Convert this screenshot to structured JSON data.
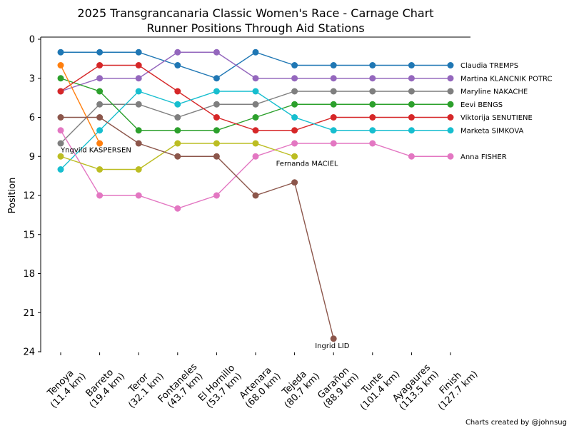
{
  "chart_data": {
    "type": "line",
    "title": "2025 Transgrancanaria Classic Women's Race - Carnage Chart",
    "subtitle": "Runner Positions Through Aid Stations",
    "xlabel": "",
    "ylabel": "Position",
    "ylim": [
      24,
      0
    ],
    "y_inverted": true,
    "yticks": [
      0,
      3,
      6,
      9,
      12,
      15,
      18,
      21,
      24
    ],
    "grid": false,
    "categories": [
      "Tenoya\n(11.4 km)",
      "Barreto\n(19.4 km)",
      "Teror\n(32.1 km)",
      "Fontaneles\n(43.7 km)",
      "El Hornillo\n(53.7 km)",
      "Artenara\n(68.0 km)",
      "Tejeda\n(80.7 km)",
      "Garañon\n(88.9 km)",
      "Tunte\n(101.4 km)",
      "Ayagaures\n(113.5 km)",
      "Finish\n(127.7 km)"
    ],
    "series": [
      {
        "name": "Claudia TREMPS",
        "color": "#1f77b4",
        "values": [
          1,
          1,
          1,
          2,
          3,
          1,
          2,
          2,
          2,
          2,
          2
        ],
        "label_at": "end"
      },
      {
        "name": "Martina KLANCNIK POTRC",
        "color": "#9467bd",
        "values": [
          4,
          3,
          3,
          1,
          1,
          3,
          3,
          3,
          3,
          3,
          3
        ],
        "label_at": "end"
      },
      {
        "name": "Maryline NAKACHE",
        "color": "#7f7f7f",
        "values": [
          8,
          5,
          5,
          6,
          5,
          5,
          4,
          4,
          4,
          4,
          4
        ],
        "label_at": "end"
      },
      {
        "name": "Eevi BENGS",
        "color": "#2ca02c",
        "values": [
          3,
          4,
          7,
          7,
          7,
          6,
          5,
          5,
          5,
          5,
          5
        ],
        "label_at": "end"
      },
      {
        "name": "Viktorija SENUTIENE",
        "color": "#d62728",
        "values": [
          4,
          2,
          2,
          4,
          6,
          7,
          7,
          6,
          6,
          6,
          6
        ],
        "label_at": "end"
      },
      {
        "name": "Marketa SIMKOVA",
        "color": "#17becf",
        "values": [
          10,
          7,
          4,
          5,
          4,
          4,
          6,
          7,
          7,
          7,
          7
        ],
        "label_at": "end"
      },
      {
        "name": "Anna FISHER",
        "color": "#e377c2",
        "values": [
          7,
          12,
          12,
          13,
          12,
          9,
          8,
          8,
          8,
          9,
          9
        ],
        "label_at": "end"
      },
      {
        "name": "Yngvild KASPERSEN",
        "color": "#ff7f0e",
        "values": [
          2,
          8,
          null,
          null,
          null,
          null,
          null,
          null,
          null,
          null,
          null
        ],
        "label_at": "start"
      },
      {
        "name": "Fernanda MACIEL",
        "color": "#bcbd22",
        "values": [
          9,
          10,
          10,
          8,
          8,
          8,
          9,
          null,
          null,
          null,
          null
        ],
        "label_at": "dnf"
      },
      {
        "name": "Ingrid LID",
        "color": "#8c564b",
        "values": [
          6,
          6,
          8,
          9,
          9,
          12,
          11,
          23,
          null,
          null,
          null
        ],
        "label_at": "dnf"
      }
    ]
  },
  "credit": "Charts created by @johnsug"
}
